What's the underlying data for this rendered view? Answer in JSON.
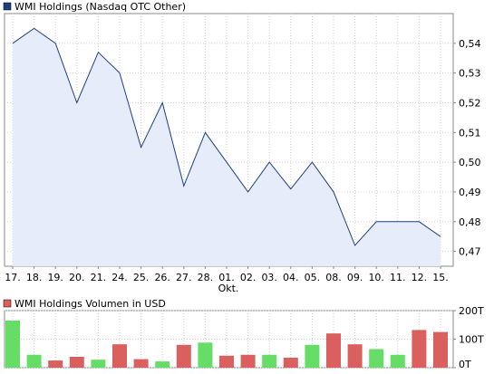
{
  "price_panel": {
    "legend": "WMI Holdings (Nasdaq OTC Other)",
    "legend_color": "#1f3f7f",
    "line_color": "#1f3f7f",
    "fill_color": "#e6ecf9"
  },
  "volume_panel": {
    "legend": "WMI Holdings Volumen in USD",
    "legend_color": "#d9605f",
    "up_color": "#66dd66",
    "down_color": "#d9605f"
  },
  "month_label": "Okt.",
  "chart_data": [
    {
      "type": "area",
      "title": "WMI Holdings (Nasdaq OTC Other)",
      "x": [
        "17.",
        "18.",
        "19.",
        "20.",
        "21.",
        "24.",
        "25.",
        "26.",
        "27.",
        "28.",
        "01.",
        "02.",
        "03.",
        "04.",
        "05.",
        "08.",
        "09.",
        "10.",
        "11.",
        "12.",
        "15."
      ],
      "series": [
        {
          "name": "WMI Holdings (Nasdaq OTC Other)",
          "values": [
            0.54,
            0.545,
            0.54,
            0.52,
            0.537,
            0.53,
            0.505,
            0.52,
            0.492,
            0.51,
            0.5,
            0.49,
            0.5,
            0.491,
            0.5,
            0.49,
            0.472,
            0.48,
            0.48,
            0.48,
            0.475
          ]
        }
      ],
      "ylim": [
        0.465,
        0.55
      ],
      "yticks": [
        "0,47",
        "0,48",
        "0,49",
        "0,50",
        "0,51",
        "0,52",
        "0,53",
        "0,54"
      ],
      "ytick_values": [
        0.47,
        0.48,
        0.49,
        0.5,
        0.51,
        0.52,
        0.53,
        0.54
      ],
      "grid": true
    },
    {
      "type": "bar",
      "title": "WMI Holdings Volumen in USD",
      "x": [
        "17.",
        "18.",
        "19.",
        "20.",
        "21.",
        "24.",
        "25.",
        "26.",
        "27.",
        "28.",
        "01.",
        "02.",
        "03.",
        "04.",
        "05.",
        "08.",
        "09.",
        "10.",
        "11.",
        "12.",
        "15."
      ],
      "series": [
        {
          "name": "WMI Holdings Volumen in USD",
          "values": [
            165,
            45,
            25,
            38,
            28,
            82,
            30,
            22,
            80,
            88,
            42,
            45,
            45,
            35,
            80,
            120,
            82,
            65,
            45,
            132,
            125
          ],
          "direction": [
            "up",
            "up",
            "down",
            "down",
            "up",
            "down",
            "down",
            "up",
            "down",
            "up",
            "down",
            "down",
            "up",
            "down",
            "up",
            "down",
            "down",
            "up",
            "up",
            "down",
            "down"
          ]
        }
      ],
      "ylim": [
        0,
        200
      ],
      "yticks": [
        "0T",
        "100T",
        "200T"
      ],
      "ytick_values": [
        0,
        100,
        200
      ],
      "grid": true
    }
  ]
}
